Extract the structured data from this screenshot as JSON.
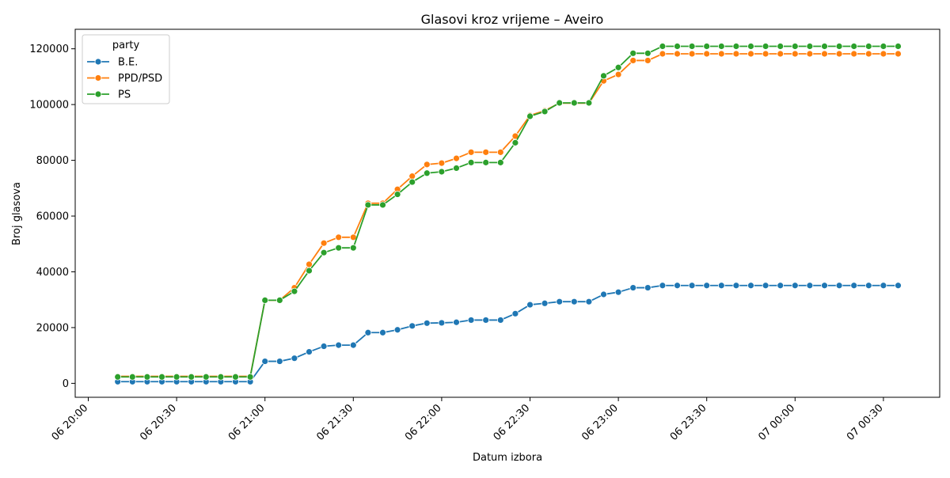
{
  "chart_data": {
    "type": "line",
    "title": "Glasovi kroz vrijeme – Aveiro",
    "xlabel": "Datum izbora",
    "ylabel": "Broj glasova",
    "ylim": [
      -5000,
      127000
    ],
    "grid": false,
    "legend": {
      "title": "party",
      "placement": "top-left"
    },
    "x_tick_labels": [
      "06 20:00",
      "06 20:30",
      "06 21:00",
      "06 21:30",
      "06 22:00",
      "06 22:30",
      "06 23:00",
      "06 23:30",
      "07 00:00",
      "07 00:30"
    ],
    "y_ticks": [
      0,
      20000,
      40000,
      60000,
      80000,
      100000,
      120000
    ],
    "x": [
      "06 20:10",
      "06 20:15",
      "06 20:20",
      "06 20:25",
      "06 20:30",
      "06 20:35",
      "06 20:40",
      "06 20:45",
      "06 20:50",
      "06 20:55",
      "06 21:00",
      "06 21:05",
      "06 21:10",
      "06 21:15",
      "06 21:20",
      "06 21:25",
      "06 21:30",
      "06 21:35",
      "06 21:40",
      "06 21:45",
      "06 21:50",
      "06 21:55",
      "06 22:00",
      "06 22:05",
      "06 22:10",
      "06 22:15",
      "06 22:20",
      "06 22:25",
      "06 22:30",
      "06 22:35",
      "06 22:40",
      "06 22:45",
      "06 22:50",
      "06 22:55",
      "06 23:00",
      "06 23:05",
      "06 23:10",
      "06 23:15",
      "06 23:20",
      "06 23:25",
      "06 23:30",
      "06 23:35",
      "06 23:40",
      "06 23:45",
      "06 23:50",
      "06 23:55",
      "07 00:00",
      "07 00:05",
      "07 00:10",
      "07 00:15",
      "07 00:20",
      "07 00:25",
      "07 00:30",
      "07 00:35"
    ],
    "series": [
      {
        "name": "B.E.",
        "color": "#1f77b4",
        "values": [
          600,
          600,
          600,
          600,
          600,
          600,
          600,
          600,
          600,
          600,
          7900,
          7900,
          9000,
          11300,
          13300,
          13700,
          13700,
          18200,
          18200,
          19200,
          20600,
          21600,
          21700,
          21900,
          22700,
          22700,
          22700,
          25000,
          28200,
          28700,
          29300,
          29300,
          29300,
          31900,
          32700,
          34300,
          34300,
          35100,
          35100,
          35100,
          35100,
          35100,
          35100,
          35100,
          35100,
          35100,
          35100,
          35100,
          35100,
          35100,
          35100,
          35100,
          35100,
          35100
        ]
      },
      {
        "name": "PPD/PSD",
        "color": "#ff7f0e",
        "values": [
          2500,
          2500,
          2500,
          2500,
          2500,
          2500,
          2500,
          2500,
          2500,
          2500,
          29800,
          29800,
          34300,
          42700,
          50300,
          52400,
          52400,
          64600,
          64600,
          69600,
          74300,
          78500,
          79000,
          80700,
          82900,
          82900,
          82900,
          88700,
          96100,
          97800,
          100500,
          100500,
          100500,
          108500,
          110800,
          115800,
          115800,
          118200,
          118200,
          118200,
          118200,
          118200,
          118200,
          118200,
          118200,
          118200,
          118200,
          118200,
          118200,
          118200,
          118200,
          118200,
          118200,
          118200
        ]
      },
      {
        "name": "PS",
        "color": "#2ca02c",
        "values": [
          2300,
          2300,
          2300,
          2300,
          2300,
          2300,
          2300,
          2300,
          2300,
          2300,
          29800,
          29800,
          33000,
          40400,
          46900,
          48600,
          48600,
          64000,
          64000,
          67800,
          72200,
          75400,
          75900,
          77200,
          79200,
          79200,
          79200,
          86300,
          95800,
          97500,
          100600,
          100600,
          100600,
          110300,
          113300,
          118400,
          118400,
          120900,
          120900,
          120900,
          120900,
          120900,
          120900,
          120900,
          120900,
          120900,
          120900,
          120900,
          120900,
          120900,
          120900,
          120900,
          120900,
          120900
        ]
      }
    ]
  }
}
